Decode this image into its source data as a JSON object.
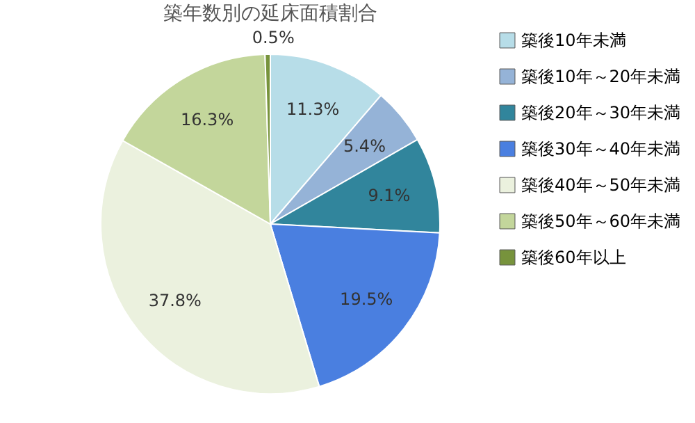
{
  "chart_data": {
    "type": "pie",
    "title": "築年数別の延床面積割合",
    "categories": [
      "築後10年未満",
      "築後10年～20年未満",
      "築後20年～30年未満",
      "築後30年～40年未満",
      "築後40年～50年未満",
      "築後50年～60年未満",
      "築後60年以上"
    ],
    "values": [
      11.3,
      5.4,
      9.1,
      19.5,
      37.8,
      16.3,
      0.5
    ],
    "colors": [
      "#b7dde8",
      "#95b3d7",
      "#31859c",
      "#4a7fe0",
      "#ebf1de",
      "#c3d69b",
      "#77933c"
    ],
    "value_labels": [
      "11.3%",
      "5.4%",
      "9.1%",
      "19.5%",
      "37.8%",
      "16.3%",
      "0.5%"
    ],
    "legend": "right"
  }
}
